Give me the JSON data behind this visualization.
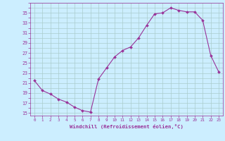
{
  "x": [
    0,
    1,
    2,
    3,
    4,
    5,
    6,
    7,
    8,
    9,
    10,
    11,
    12,
    13,
    14,
    15,
    16,
    17,
    18,
    19,
    20,
    21,
    22,
    23
  ],
  "y": [
    21.5,
    19.5,
    18.8,
    17.8,
    17.2,
    16.2,
    15.5,
    15.2,
    21.8,
    24.0,
    26.2,
    27.5,
    28.2,
    30.0,
    32.5,
    34.8,
    35.0,
    36.0,
    35.5,
    35.2,
    35.2,
    33.5,
    26.5,
    23.2
  ],
  "line_color": "#993399",
  "marker": "D",
  "marker_size": 2.0,
  "bg_color": "#cceeff",
  "grid_color": "#aacccc",
  "xlabel": "Windchill (Refroidissement éolien,°C)",
  "xlabel_color": "#993399",
  "tick_color": "#993399",
  "yticks": [
    15,
    17,
    19,
    21,
    23,
    25,
    27,
    29,
    31,
    33,
    35
  ],
  "ylim": [
    14.5,
    37.0
  ],
  "xlim": [
    -0.5,
    23.5
  ]
}
